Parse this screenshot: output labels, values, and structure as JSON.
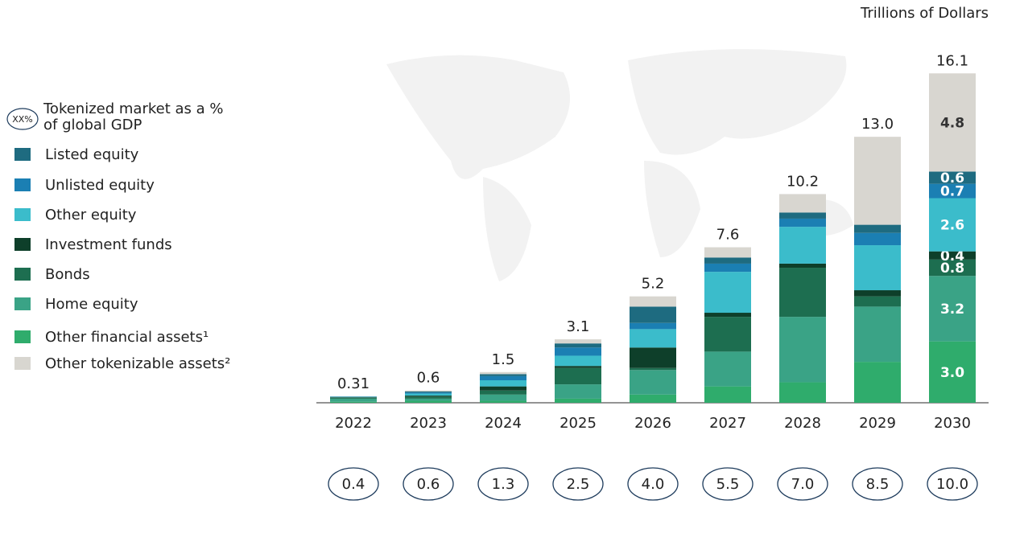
{
  "chart_data": {
    "type": "stacked-bar",
    "unit_label": "Trillions of Dollars",
    "categories": [
      "2022",
      "2023",
      "2024",
      "2025",
      "2026",
      "2027",
      "2028",
      "2029",
      "2030"
    ],
    "series": [
      {
        "name": "Other financial assets¹",
        "color": "#2fac6c",
        "values": [
          0.05,
          0.1,
          0.1,
          0.2,
          0.4,
          0.8,
          1.0,
          2.0,
          3.0
        ],
        "value_labels": [
          null,
          null,
          null,
          null,
          null,
          null,
          null,
          null,
          "3.0"
        ]
      },
      {
        "name": "Home equity",
        "color": "#3aa386",
        "values": [
          0.15,
          0.1,
          0.3,
          0.7,
          1.2,
          1.7,
          3.2,
          2.7,
          3.2
        ],
        "value_labels": [
          null,
          null,
          null,
          null,
          null,
          null,
          null,
          null,
          "3.2"
        ]
      },
      {
        "name": "Bonds",
        "color": "#1d6e50",
        "values": [
          0.05,
          0.1,
          0.2,
          0.8,
          0.1,
          1.7,
          2.4,
          0.5,
          0.8
        ],
        "value_labels": [
          null,
          null,
          null,
          null,
          null,
          null,
          null,
          null,
          "0.8"
        ]
      },
      {
        "name": "Investment funds",
        "color": "#0e3f2a",
        "values": [
          0.02,
          0.05,
          0.2,
          0.1,
          1.0,
          0.2,
          0.2,
          0.3,
          0.4
        ],
        "value_labels": [
          null,
          null,
          null,
          null,
          null,
          null,
          null,
          null,
          "0.4"
        ]
      },
      {
        "name": "Other equity",
        "color": "#3bbccb",
        "values": [
          0.02,
          0.1,
          0.3,
          0.5,
          0.9,
          2.0,
          1.8,
          2.2,
          2.6
        ],
        "value_labels": [
          null,
          null,
          null,
          null,
          null,
          null,
          null,
          null,
          "2.6"
        ]
      },
      {
        "name": "Unlisted equity",
        "color": "#1b7fb3",
        "values": [
          0.01,
          0.05,
          0.2,
          0.4,
          0.3,
          0.4,
          0.4,
          0.6,
          0.7
        ],
        "value_labels": [
          null,
          null,
          null,
          null,
          null,
          null,
          null,
          null,
          "0.7"
        ]
      },
      {
        "name": "Listed equity",
        "color": "#1e6b80",
        "values": [
          0.01,
          0.05,
          0.1,
          0.2,
          0.8,
          0.3,
          0.3,
          0.4,
          0.6
        ],
        "value_labels": [
          null,
          null,
          null,
          null,
          null,
          null,
          null,
          null,
          "0.6"
        ]
      },
      {
        "name": "Other tokenizable assets²",
        "color": "#d8d6d0",
        "values": [
          0,
          0.05,
          0.1,
          0.2,
          0.5,
          0.5,
          0.9,
          4.3,
          4.8
        ],
        "value_labels": [
          null,
          null,
          null,
          null,
          null,
          null,
          null,
          null,
          "4.8"
        ]
      }
    ],
    "totals": {
      "values": [
        0.31,
        0.6,
        1.5,
        3.1,
        5.2,
        7.6,
        10.2,
        13.0,
        16.1
      ],
      "value_labels": [
        "0.31",
        "0.6",
        "1.5",
        "3.1",
        "5.2",
        "7.6",
        "10.2",
        "13.0",
        "16.1"
      ]
    },
    "gdp_share": {
      "name": "Tokenized market as a % of global GDP",
      "badge": "XX%",
      "color": "#1d3b5c",
      "values": [
        0.4,
        0.6,
        1.3,
        2.5,
        4.0,
        5.5,
        7.0,
        8.5,
        10.0
      ],
      "value_labels": [
        "0.4",
        "0.6",
        "1.3",
        "2.5",
        "4.0",
        "5.5",
        "7.0",
        "8.5",
        "10.0"
      ]
    }
  }
}
